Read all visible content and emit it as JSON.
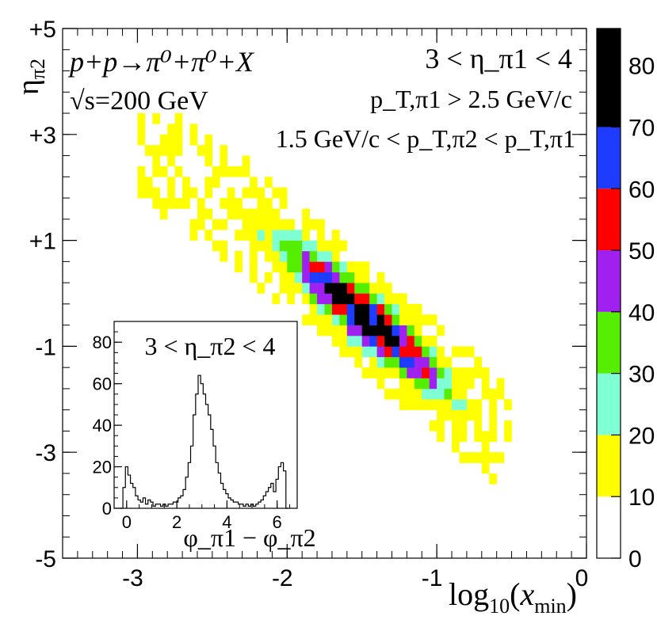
{
  "chart_data": [
    {
      "type": "heatmap",
      "title": "",
      "xlabel": "log10(x_min)",
      "ylabel": "η_π2",
      "xlim": [
        -3.5,
        0
      ],
      "ylim": [
        -5,
        5
      ],
      "x_ticks": [
        -3,
        -2,
        -1,
        0
      ],
      "x_tick_labels": [
        "-3",
        "-2",
        "-1",
        "0"
      ],
      "y_ticks": [
        -5,
        -3,
        -1,
        1,
        3,
        5
      ],
      "y_tick_labels": [
        "-5",
        "-3",
        "-1",
        "+1",
        "+3",
        "+5"
      ],
      "bin_width_x": 0.05,
      "bin_height_y": 0.2,
      "grid": false,
      "colorbar": {
        "min": 0,
        "max": 86,
        "ticks": [
          0,
          10,
          20,
          30,
          40,
          50,
          60,
          70,
          80
        ],
        "tick_labels": [
          "0",
          "10",
          "20",
          "30",
          "40",
          "50",
          "60",
          "70",
          "80"
        ],
        "levels": [
          {
            "from": 0,
            "to": 10,
            "color": "#ffffff"
          },
          {
            "from": 10,
            "to": 20,
            "color": "#ffff00"
          },
          {
            "from": 20,
            "to": 30,
            "color": "#7fffd4"
          },
          {
            "from": 30,
            "to": 40,
            "color": "#55ee00"
          },
          {
            "from": 40,
            "to": 50,
            "color": "#a020f0"
          },
          {
            "from": 50,
            "to": 60,
            "color": "#ff0000"
          },
          {
            "from": 60,
            "to": 70,
            "color": "#1e3cff"
          },
          {
            "from": 70,
            "to": 86,
            "color": "#000000"
          }
        ]
      },
      "band": {
        "description": "diagonal correlation band",
        "center_line": [
          [
            -3.0,
            2.9
          ],
          [
            -2.5,
            1.9
          ],
          [
            -2.0,
            0.8
          ],
          [
            -1.5,
            -0.4
          ],
          [
            -1.0,
            -1.6
          ],
          [
            -0.6,
            -2.6
          ]
        ],
        "peak": {
          "x": -1.52,
          "y": -0.3,
          "value": 82
        }
      },
      "annotations": {
        "reaction": "p+p→π⁰+π⁰+X",
        "energy": "√s=200 GeV",
        "eta_cut": "3 < η_π1 < 4",
        "pt_cut1": "p_T,π1 > 2.5 GeV/c",
        "pt_cut2": "1.5 GeV/c < p_T,π2 < p_T,π1"
      }
    },
    {
      "type": "line",
      "title": "3 < η_π2 < 4",
      "xlabel": "φ_π1 − φ_π2",
      "ylabel": "",
      "xlim": [
        -0.5,
        6.8
      ],
      "ylim": [
        0,
        90
      ],
      "x_ticks": [
        0,
        2,
        4,
        6
      ],
      "x_tick_labels": [
        "0",
        "2",
        "4",
        "6"
      ],
      "y_ticks": [
        0,
        20,
        40,
        60,
        80
      ],
      "y_tick_labels": [
        "0",
        "20",
        "40",
        "60",
        "80"
      ],
      "x": [
        -0.2,
        -0.1,
        0.0,
        0.1,
        0.2,
        0.3,
        0.4,
        0.5,
        0.6,
        0.7,
        0.8,
        0.9,
        1.0,
        1.1,
        1.2,
        1.3,
        1.4,
        1.5,
        1.6,
        1.7,
        1.8,
        1.9,
        2.0,
        2.1,
        2.2,
        2.3,
        2.4,
        2.5,
        2.6,
        2.7,
        2.8,
        2.9,
        3.0,
        3.1,
        3.2,
        3.3,
        3.4,
        3.5,
        3.6,
        3.7,
        3.8,
        3.9,
        4.0,
        4.1,
        4.2,
        4.3,
        4.4,
        4.5,
        4.6,
        4.7,
        4.8,
        4.9,
        5.0,
        5.1,
        5.2,
        5.3,
        5.4,
        5.5,
        5.6,
        5.7,
        5.8,
        5.9,
        6.0,
        6.1,
        6.2,
        6.3,
        6.4
      ],
      "values": [
        0,
        10,
        20,
        16,
        12,
        10,
        6,
        4,
        3,
        5,
        2,
        4,
        3,
        1,
        2,
        2,
        1,
        2,
        1,
        2,
        2,
        3,
        3,
        5,
        6,
        9,
        15,
        22,
        30,
        45,
        55,
        64,
        60,
        55,
        50,
        45,
        38,
        30,
        22,
        17,
        12,
        9,
        7,
        5,
        4,
        3,
        3,
        2,
        2,
        1,
        2,
        1,
        2,
        1,
        2,
        3,
        4,
        6,
        8,
        10,
        12,
        8,
        14,
        20,
        22,
        18,
        0
      ]
    }
  ]
}
